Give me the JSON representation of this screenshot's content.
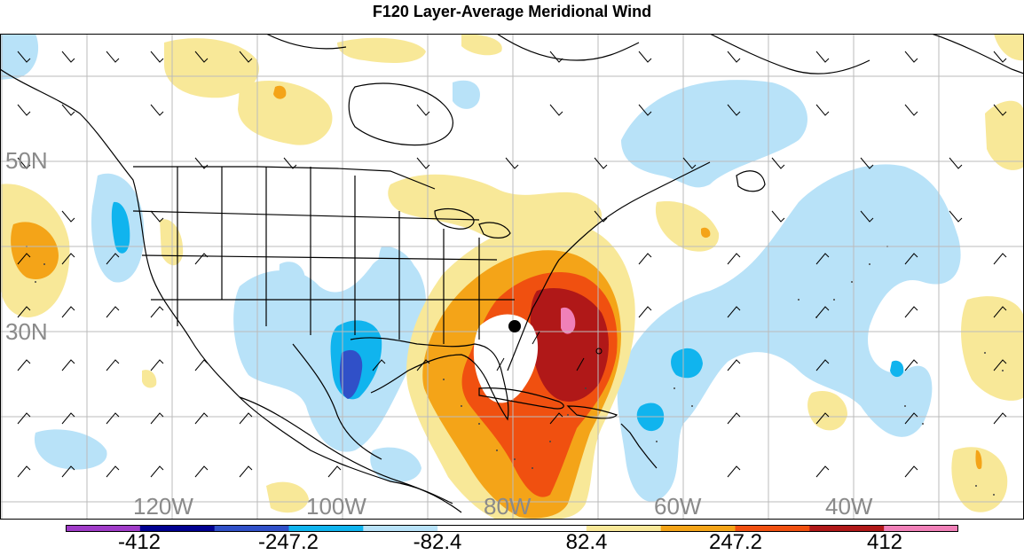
{
  "title": "F120 Layer-Average Meridional Wind",
  "lat_labels": [
    "50N",
    "30N"
  ],
  "lon_labels": [
    "120W",
    "100W",
    "80W",
    "60W",
    "40W"
  ],
  "colorbar": {
    "ticks": [
      "-412",
      "-247.2",
      "-82.4",
      "82.4",
      "247.2",
      "412"
    ],
    "colors": [
      "#a03cc8",
      "#000090",
      "#3050c8",
      "#10b4ee",
      "#b8e2f8",
      "#ffffff",
      "#ffffff",
      "#f8e898",
      "#f4a418",
      "#f05010",
      "#b01818",
      "#f080b8"
    ]
  },
  "palette": {
    "neg_light": "#b8e2f8",
    "neg_mid": "#10b4ee",
    "neg_dark": "#3050c8",
    "pos_light": "#f8e898",
    "pos_mid": "#f4a418",
    "pos_dark": "#f05010",
    "pos_darker": "#b01818",
    "pos_max": "#f080b8",
    "storm_center": "#000000"
  }
}
